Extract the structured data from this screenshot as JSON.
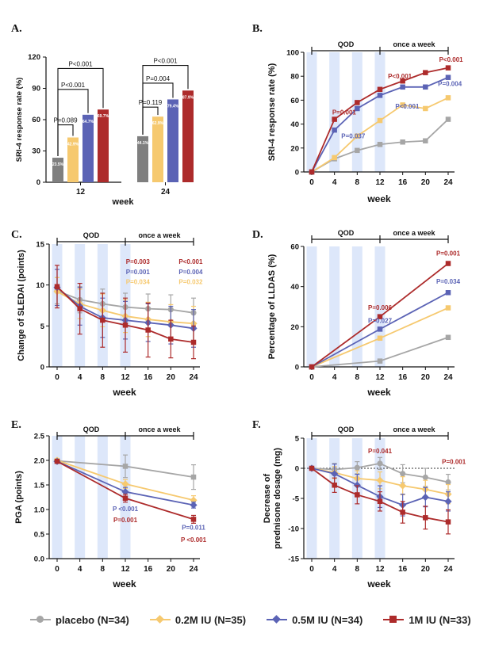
{
  "legend": [
    {
      "label": "placebo (N=34)",
      "color": "#a6a6a6",
      "marker": "circle"
    },
    {
      "label": "0.2M IU (N=35)",
      "color": "#f6c96f",
      "marker": "diamond"
    },
    {
      "label": "0.5M IU (N=34)",
      "color": "#5b63b5",
      "marker": "diamond"
    },
    {
      "label": "1M IU (N=33)",
      "color": "#ad2b2b",
      "marker": "square"
    }
  ],
  "phase_labels": {
    "qod": "QOD",
    "weekly": "once a week"
  },
  "chart_data": [
    {
      "panel": "A.",
      "type": "bar",
      "xlabel": "week",
      "ylabel": "SRI-4 response rate (%)",
      "ylim": [
        0,
        120
      ],
      "yticks": [
        "0",
        "30",
        "60",
        "90",
        "120"
      ],
      "categories": [
        "12",
        "24"
      ],
      "series": [
        {
          "color": "#7f7f7f",
          "values": [
            23.5,
            44.1
          ],
          "labels": [
            "23.5%",
            "44.1%"
          ]
        },
        {
          "color": "#f6c96f",
          "values": [
            42.9,
            62.9
          ],
          "labels": [
            "42.9%",
            "62.9%"
          ]
        },
        {
          "color": "#5b63b5",
          "values": [
            64.7,
            79.4
          ],
          "labels": [
            "64.7%",
            "79.4%"
          ]
        },
        {
          "color": "#ad2b2b",
          "values": [
            69.7,
            87.9
          ],
          "labels": [
            "69.7%",
            "87.9%"
          ]
        }
      ],
      "annotations": [
        {
          "text": "P<0.001",
          "group": 0,
          "from": 0,
          "to": 3,
          "y": 109
        },
        {
          "text": "P<0.001",
          "group": 0,
          "from": 0,
          "to": 2,
          "y": 89
        },
        {
          "text": "P=0.089",
          "group": 0,
          "from": 0,
          "to": 1,
          "y": 55
        },
        {
          "text": "P<0.001",
          "group": 1,
          "from": 0,
          "to": 3,
          "y": 112
        },
        {
          "text": "P=0.004",
          "group": 1,
          "from": 0,
          "to": 2,
          "y": 95
        },
        {
          "text": "P=0.119",
          "group": 1,
          "from": 0,
          "to": 1,
          "y": 72
        }
      ]
    },
    {
      "panel": "B.",
      "type": "line",
      "xlabel": "week",
      "ylabel": "SRI-4 response rate (%)",
      "ylim": [
        0,
        100
      ],
      "yticks": [
        "0",
        "20",
        "40",
        "60",
        "80",
        "100"
      ],
      "x": [
        0,
        4,
        8,
        12,
        16,
        20,
        24
      ],
      "xticks": [
        "0",
        "4",
        "8",
        "12",
        "16",
        "20",
        "24"
      ],
      "series": [
        {
          "color": "#a6a6a6",
          "marker": "square",
          "values": [
            0,
            11,
            18,
            23,
            25,
            26,
            44
          ]
        },
        {
          "color": "#f6c96f",
          "marker": "square",
          "values": [
            0,
            12,
            30,
            43,
            56,
            53,
            62
          ]
        },
        {
          "color": "#5b63b5",
          "marker": "square",
          "values": [
            0,
            35,
            53,
            64,
            71,
            71,
            79
          ]
        },
        {
          "color": "#ad2b2b",
          "marker": "square",
          "values": [
            0,
            44,
            58,
            69,
            76,
            83,
            87
          ]
        }
      ],
      "annotations": [
        {
          "text": "P=0.001",
          "color": "#ad2b2b",
          "x": 5.7,
          "y": 48
        },
        {
          "text": "P=0.037",
          "color": "#5b63b5",
          "x": 7.3,
          "y": 28
        },
        {
          "text": "P<0.001",
          "color": "#ad2b2b",
          "x": 15.5,
          "y": 78
        },
        {
          "text": "P<0.001",
          "color": "#5b63b5",
          "x": 16.8,
          "y": 53
        },
        {
          "text": "P<0.001",
          "color": "#ad2b2b",
          "x": 24.5,
          "y": 92
        },
        {
          "text": "P=0.004",
          "color": "#5b63b5",
          "x": 24.3,
          "y": 72
        }
      ]
    },
    {
      "panel": "C.",
      "type": "line",
      "xlabel": "week",
      "ylabel": "Change of SLEDAI (points)",
      "ylim": [
        0,
        15
      ],
      "yticks": [
        "0",
        "5",
        "10",
        "15"
      ],
      "x": [
        0,
        4,
        8,
        12,
        16,
        20,
        24
      ],
      "xticks": [
        "0",
        "4",
        "8",
        "12",
        "16",
        "20",
        "24"
      ],
      "series": [
        {
          "color": "#a6a6a6",
          "marker": "circle",
          "values": [
            9.3,
            8.2,
            7.7,
            7.3,
            7.1,
            7.0,
            6.6
          ],
          "err": [
            1.6,
            1.6,
            1.8,
            1.7,
            1.8,
            1.8,
            1.8
          ]
        },
        {
          "color": "#f6c96f",
          "marker": "diamond",
          "values": [
            9.2,
            7.7,
            6.9,
            6.2,
            5.8,
            5.5,
            5.3
          ],
          "err": [
            1.7,
            1.8,
            2.0,
            2.0,
            2.1,
            2.1,
            2.1
          ]
        },
        {
          "color": "#5b63b5",
          "marker": "diamond",
          "values": [
            9.7,
            7.4,
            6.0,
            5.7,
            5.4,
            5.1,
            4.7
          ],
          "err": [
            2.2,
            2.3,
            2.4,
            2.3,
            2.3,
            2.3,
            2.3
          ]
        },
        {
          "color": "#ad2b2b",
          "marker": "square",
          "values": [
            9.8,
            7.1,
            5.7,
            5.1,
            4.5,
            3.4,
            3.0
          ],
          "err": [
            2.6,
            3.1,
            3.3,
            3.3,
            3.3,
            2.3,
            2.0
          ]
        }
      ],
      "annotations": [
        {
          "text": "P=0.003",
          "color": "#ad2b2b",
          "x": 14.2,
          "y": 12.6
        },
        {
          "text": "P=0.001",
          "color": "#5b63b5",
          "x": 14.2,
          "y": 11.3
        },
        {
          "text": "P=0.034",
          "color": "#f6c96f",
          "x": 14.2,
          "y": 10.1
        },
        {
          "text": "P<0.001",
          "color": "#ad2b2b",
          "x": 23.5,
          "y": 12.6
        },
        {
          "text": "P=0.004",
          "color": "#5b63b5",
          "x": 23.5,
          "y": 11.3
        },
        {
          "text": "P=0.032",
          "color": "#f6c96f",
          "x": 23.5,
          "y": 10.1
        }
      ]
    },
    {
      "panel": "D.",
      "type": "line",
      "xlabel": "week",
      "ylabel": "Percentage of LLDAS (%)",
      "ylim": [
        0,
        60
      ],
      "yticks": [
        "0",
        "20",
        "40",
        "60"
      ],
      "x": [
        0,
        12,
        24
      ],
      "xticks": [
        "0",
        "4",
        "8",
        "12",
        "16",
        "20",
        "24"
      ],
      "series": [
        {
          "color": "#a6a6a6",
          "marker": "square",
          "values": [
            0,
            2.9,
            14.7
          ]
        },
        {
          "color": "#f6c96f",
          "marker": "square",
          "values": [
            0,
            14.3,
            29.4
          ]
        },
        {
          "color": "#5b63b5",
          "marker": "square",
          "values": [
            0,
            18.8,
            37.0
          ]
        },
        {
          "color": "#ad2b2b",
          "marker": "square",
          "values": [
            0,
            25.0,
            51.5
          ]
        }
      ],
      "annotations": [
        {
          "text": "P=0.006",
          "color": "#ad2b2b",
          "x": 12,
          "y": 28.5
        },
        {
          "text": "P=0.027",
          "color": "#5b63b5",
          "x": 12,
          "y": 22
        },
        {
          "text": "P=0.001",
          "color": "#ad2b2b",
          "x": 24,
          "y": 55.5
        },
        {
          "text": "P=0.034",
          "color": "#5b63b5",
          "x": 24,
          "y": 41.5
        }
      ]
    },
    {
      "panel": "E.",
      "type": "line",
      "xlabel": "week",
      "ylabel": "PGA (points)",
      "ylim": [
        0,
        2.5
      ],
      "yticks": [
        "0.0",
        "0.5",
        "1.0",
        "1.5",
        "2.0",
        "2.5"
      ],
      "x": [
        0,
        12,
        24
      ],
      "xticks": [
        "0",
        "4",
        "8",
        "12",
        "16",
        "20",
        "24"
      ],
      "series": [
        {
          "color": "#a6a6a6",
          "marker": "square",
          "values": [
            1.99,
            1.88,
            1.66
          ],
          "err": [
            0.04,
            0.23,
            0.25
          ]
        },
        {
          "color": "#f6c96f",
          "marker": "diamond",
          "values": [
            2.0,
            1.52,
            1.19
          ],
          "err": [
            0.04,
            0.09,
            0.09
          ]
        },
        {
          "color": "#5b63b5",
          "marker": "diamond",
          "values": [
            1.98,
            1.36,
            1.09
          ],
          "err": [
            0.04,
            0.09,
            0.06
          ]
        },
        {
          "color": "#ad2b2b",
          "marker": "square",
          "values": [
            1.98,
            1.23,
            0.8
          ],
          "err": [
            0.04,
            0.08,
            0.08
          ]
        }
      ],
      "annotations": [
        {
          "text": "P <0.001",
          "color": "#5b63b5",
          "x": 12,
          "y": 0.97
        },
        {
          "text": "P=0.001",
          "color": "#ad2b2b",
          "x": 12,
          "y": 0.74
        },
        {
          "text": "P=0.011",
          "color": "#5b63b5",
          "x": 24,
          "y": 0.59
        },
        {
          "text": "P <0.001",
          "color": "#ad2b2b",
          "x": 24,
          "y": 0.34
        }
      ]
    },
    {
      "panel": "F.",
      "type": "line",
      "xlabel": "week",
      "ylabel": "Decrease of prednisone dosage (mg)",
      "ylim": [
        -15,
        5
      ],
      "yticks": [
        "-15",
        "-10",
        "-5",
        "0",
        "5"
      ],
      "x": [
        0,
        4,
        8,
        12,
        16,
        20,
        24
      ],
      "xticks": [
        "0",
        "4",
        "8",
        "12",
        "16",
        "20",
        "24"
      ],
      "series": [
        {
          "color": "#a6a6a6",
          "marker": "circle",
          "values": [
            0,
            -0.2,
            0.1,
            0.8,
            -0.9,
            -1.5,
            -2.3
          ],
          "err": [
            0.3,
            1.0,
            1.0,
            1.0,
            1.5,
            1.5,
            1.3
          ]
        },
        {
          "color": "#f6c96f",
          "marker": "diamond",
          "values": [
            0,
            -0.7,
            -1.7,
            -2.0,
            -2.9,
            -3.5,
            -4.3
          ],
          "err": [
            0.3,
            1.0,
            1.3,
            1.4,
            1.5,
            1.5,
            1.6
          ]
        },
        {
          "color": "#5b63b5",
          "marker": "diamond",
          "values": [
            0,
            -0.9,
            -2.8,
            -4.7,
            -6.1,
            -4.8,
            -5.5
          ],
          "err": [
            0.3,
            1.6,
            1.8,
            1.8,
            1.8,
            1.6,
            1.6
          ]
        },
        {
          "color": "#ad2b2b",
          "marker": "square",
          "values": [
            0,
            -2.8,
            -4.4,
            -5.5,
            -7.3,
            -8.2,
            -8.9
          ],
          "err": [
            0.3,
            1.2,
            1.5,
            1.6,
            1.8,
            1.9,
            2.0
          ]
        }
      ],
      "annotations": [
        {
          "text": "P=0.041",
          "color": "#ad2b2b",
          "x": 12,
          "y": 2.5
        },
        {
          "text": "P=0.001",
          "color": "#ad2b2b",
          "x": 25,
          "y": 0.7
        }
      ]
    }
  ]
}
